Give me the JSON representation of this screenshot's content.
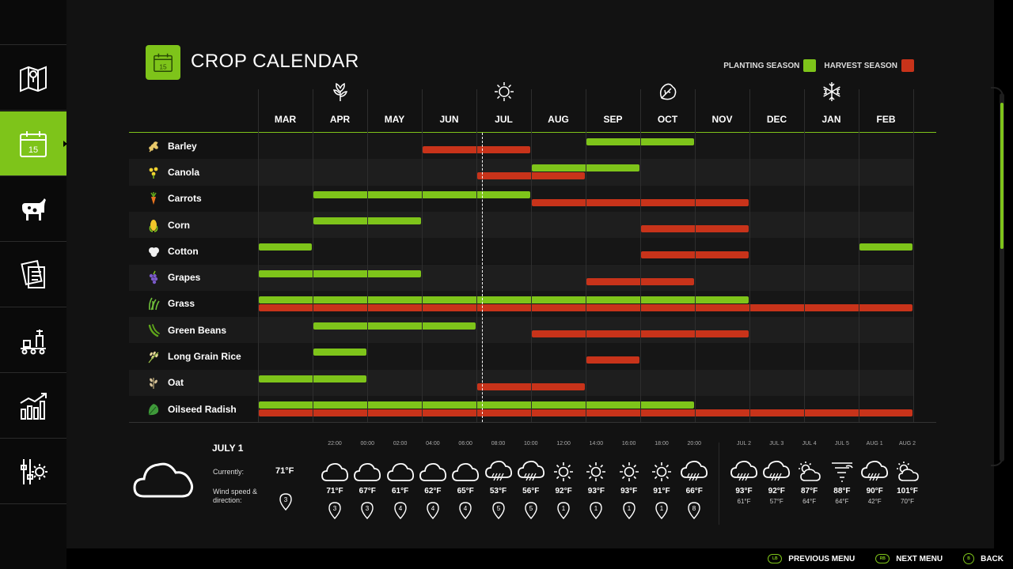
{
  "header": {
    "title": "CROP CALENDAR",
    "calendar_icon_day": "15",
    "legend": [
      {
        "label": "PLANTING SEASON",
        "color": "#7ec41a"
      },
      {
        "label": "HARVEST SEASON",
        "color": "#c8331a"
      }
    ]
  },
  "sidebar": {
    "items": [
      {
        "name": "map-icon",
        "active": false
      },
      {
        "name": "calendar-icon",
        "active": true,
        "day": "15"
      },
      {
        "name": "livestock-icon",
        "active": false
      },
      {
        "name": "contracts-icon",
        "active": false
      },
      {
        "name": "production-icon",
        "active": false
      },
      {
        "name": "statistics-icon",
        "active": false
      },
      {
        "name": "settings-icon",
        "active": false
      }
    ]
  },
  "months": [
    "MAR",
    "APR",
    "MAY",
    "JUN",
    "JUL",
    "AUG",
    "SEP",
    "OCT",
    "NOV",
    "DEC",
    "JAN",
    "FEB"
  ],
  "seasons": [
    {
      "name": "spring-flower-icon",
      "month_index": 1
    },
    {
      "name": "summer-sun-icon",
      "month_index": 4
    },
    {
      "name": "autumn-leaf-icon",
      "month_index": 7
    },
    {
      "name": "winter-snowflake-icon",
      "month_index": 10
    }
  ],
  "today_month_position": 4.1,
  "crops": [
    {
      "name": "Barley",
      "icon": "barley-icon",
      "plant": [
        [
          6,
          8
        ]
      ],
      "harvest": [
        [
          3,
          5
        ]
      ]
    },
    {
      "name": "Canola",
      "icon": "canola-icon",
      "plant": [
        [
          5,
          7
        ]
      ],
      "harvest": [
        [
          4,
          6
        ]
      ]
    },
    {
      "name": "Carrots",
      "icon": "carrot-icon",
      "plant": [
        [
          1,
          5
        ]
      ],
      "harvest": [
        [
          5,
          9
        ]
      ]
    },
    {
      "name": "Corn",
      "icon": "corn-icon",
      "plant": [
        [
          1,
          3
        ]
      ],
      "harvest": [
        [
          7,
          9
        ]
      ]
    },
    {
      "name": "Cotton",
      "icon": "cotton-icon",
      "plant": [
        [
          0,
          1
        ],
        [
          11,
          12
        ]
      ],
      "harvest": [
        [
          7,
          9
        ]
      ]
    },
    {
      "name": "Grapes",
      "icon": "grapes-icon",
      "plant": [
        [
          0,
          3
        ]
      ],
      "harvest": [
        [
          6,
          8
        ]
      ]
    },
    {
      "name": "Grass",
      "icon": "grass-icon",
      "plant": [
        [
          0,
          9
        ]
      ],
      "harvest": [
        [
          0,
          12
        ]
      ]
    },
    {
      "name": "Green Beans",
      "icon": "green-beans-icon",
      "plant": [
        [
          1,
          4
        ]
      ],
      "harvest": [
        [
          5,
          9
        ]
      ]
    },
    {
      "name": "Long Grain Rice",
      "icon": "rice-icon",
      "plant": [
        [
          1,
          2
        ]
      ],
      "harvest": [
        [
          6,
          7
        ]
      ]
    },
    {
      "name": "Oat",
      "icon": "oat-icon",
      "plant": [
        [
          0,
          2
        ]
      ],
      "harvest": [
        [
          4,
          6
        ]
      ]
    },
    {
      "name": "Oilseed Radish",
      "icon": "oilseed-radish-icon",
      "plant": [
        [
          0,
          8
        ]
      ],
      "harvest": [
        [
          0,
          12
        ]
      ]
    }
  ],
  "weather": {
    "date": "JULY 1",
    "current_label": "Currently:",
    "current_temp": "71°F",
    "wind_label": "Wind speed & direction:",
    "wind_value": "3",
    "hourly": [
      {
        "time": "22:00",
        "icon": "cloud",
        "temp": "71°F",
        "wind": "3"
      },
      {
        "time": "00:00",
        "icon": "cloud",
        "temp": "67°F",
        "wind": "3"
      },
      {
        "time": "02:00",
        "icon": "cloud",
        "temp": "61°F",
        "wind": "4"
      },
      {
        "time": "04:00",
        "icon": "cloud",
        "temp": "62°F",
        "wind": "4"
      },
      {
        "time": "06:00",
        "icon": "cloud",
        "temp": "65°F",
        "wind": "4"
      },
      {
        "time": "08:00",
        "icon": "rain",
        "temp": "53°F",
        "wind": "5"
      },
      {
        "time": "10:00",
        "icon": "rain",
        "temp": "56°F",
        "wind": "5"
      },
      {
        "time": "12:00",
        "icon": "sun",
        "temp": "92°F",
        "wind": "1"
      },
      {
        "time": "14:00",
        "icon": "sun",
        "temp": "93°F",
        "wind": "1"
      },
      {
        "time": "16:00",
        "icon": "sun",
        "temp": "93°F",
        "wind": "1"
      },
      {
        "time": "18:00",
        "icon": "sun",
        "temp": "91°F",
        "wind": "1"
      },
      {
        "time": "20:00",
        "icon": "rain",
        "temp": "66°F",
        "wind": "8"
      }
    ],
    "daily": [
      {
        "date": "JUL 2",
        "icon": "rain",
        "high": "93°F",
        "low": "61°F"
      },
      {
        "date": "JUL 3",
        "icon": "rain",
        "high": "92°F",
        "low": "57°F"
      },
      {
        "date": "JUL 4",
        "icon": "partly-cloudy",
        "high": "87°F",
        "low": "64°F"
      },
      {
        "date": "JUL 5",
        "icon": "tornado",
        "high": "88°F",
        "low": "64°F"
      },
      {
        "date": "AUG 1",
        "icon": "rain",
        "high": "90°F",
        "low": "42°F"
      },
      {
        "date": "AUG 2",
        "icon": "partly-cloudy",
        "high": "101°F",
        "low": "70°F"
      }
    ]
  },
  "footer": {
    "previous_menu": "PREVIOUS MENU",
    "previous_key": "LB",
    "next_menu": "NEXT MENU",
    "next_key": "RB",
    "back": "BACK",
    "back_key": "B"
  }
}
